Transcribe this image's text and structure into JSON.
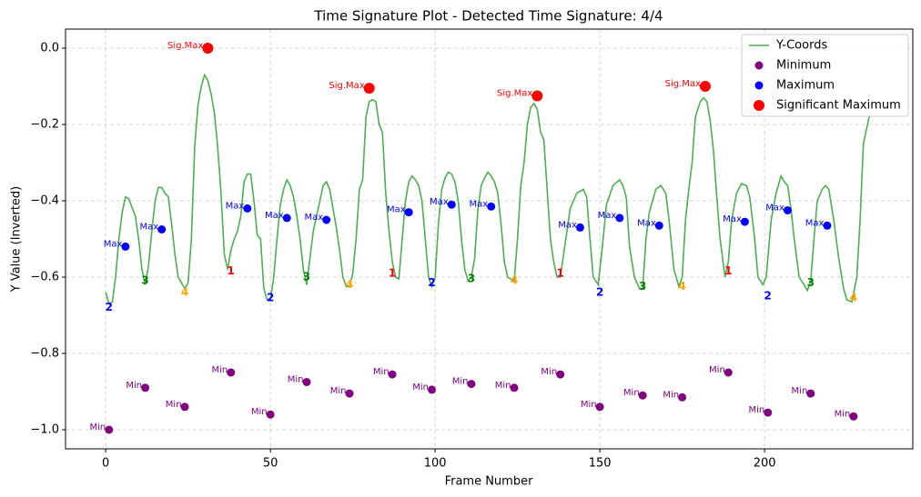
{
  "chart_data": {
    "type": "line",
    "title": "Time Signature Plot - Detected Time Signature: 4/4",
    "xlabel": "Frame Number",
    "ylabel": "Y Value (Inverted)",
    "xlim": [
      -12.2,
      245
    ],
    "ylim": [
      -1.05,
      0.05
    ],
    "xticks": [
      0,
      50,
      100,
      150,
      200
    ],
    "yticks": [
      {
        "value": 0,
        "label": "0.0"
      },
      {
        "value": -0.2,
        "label": "−0.2"
      },
      {
        "value": -0.4,
        "label": "−0.4"
      },
      {
        "value": -0.6,
        "label": "−0.6"
      },
      {
        "value": -0.8,
        "label": "−0.8"
      },
      {
        "value": -1.0,
        "label": "−1.0"
      }
    ],
    "grid": true,
    "legend": "upper right",
    "series": [
      {
        "name": "Y-Coords",
        "type": "line",
        "color": "#4caf50",
        "x": [
          0,
          1,
          2,
          3,
          4,
          5,
          6,
          7,
          9,
          10,
          11,
          12,
          13,
          14,
          15,
          16,
          17,
          18,
          19,
          20,
          21,
          22,
          24,
          25,
          26,
          27,
          28,
          29,
          30,
          31,
          32,
          33,
          34,
          35,
          36,
          37,
          38,
          39,
          40,
          41,
          42,
          43,
          44,
          45,
          46,
          47,
          48,
          49,
          50,
          51,
          52,
          53,
          54,
          55,
          56,
          57,
          58,
          59,
          60,
          61,
          62,
          63,
          64,
          65,
          66,
          67,
          68,
          69,
          70,
          71,
          72,
          73,
          74,
          75,
          76,
          77,
          78,
          79,
          80,
          81,
          82,
          83,
          84,
          85,
          86,
          87,
          88,
          89,
          90,
          91,
          92,
          93,
          94,
          95,
          96,
          97,
          98,
          99,
          100,
          101,
          102,
          103,
          104,
          105,
          106,
          107,
          108,
          109,
          110,
          111,
          112,
          113,
          114,
          115,
          116,
          117,
          118,
          119,
          120,
          121,
          122,
          124,
          125,
          126,
          127,
          128,
          129,
          130,
          131,
          132,
          133,
          134,
          135,
          136,
          137,
          138,
          141,
          143,
          145,
          146,
          147,
          148,
          149.5,
          151,
          152,
          154,
          156,
          157,
          158,
          159,
          160.5,
          162,
          163,
          164,
          165,
          167,
          168.5,
          170,
          171,
          172.5,
          174,
          175,
          176,
          177,
          178,
          179,
          180.5,
          181.5,
          182.5,
          183.5,
          184.5,
          185.5,
          186.5,
          188,
          189,
          190,
          191.5,
          193,
          194.5,
          195.5,
          197,
          198,
          199.5,
          200.5,
          202,
          203.5,
          205,
          206,
          207,
          208,
          209,
          210.5,
          212,
          213,
          214,
          215,
          216,
          217.5,
          218.5,
          219.5,
          221,
          222.5,
          224,
          225,
          226.5,
          228,
          229,
          230,
          232
        ],
        "values": [
          -0.64,
          -0.67,
          -0.665,
          -0.6,
          -0.5,
          -0.43,
          -0.39,
          -0.395,
          -0.44,
          -0.5,
          -0.58,
          -0.62,
          -0.57,
          -0.48,
          -0.4,
          -0.365,
          -0.365,
          -0.38,
          -0.39,
          -0.46,
          -0.54,
          -0.6,
          -0.63,
          -0.615,
          -0.5,
          -0.26,
          -0.15,
          -0.1,
          -0.07,
          -0.085,
          -0.12,
          -0.17,
          -0.26,
          -0.38,
          -0.54,
          -0.58,
          -0.53,
          -0.5,
          -0.48,
          -0.44,
          -0.35,
          -0.33,
          -0.33,
          -0.4,
          -0.49,
          -0.5,
          -0.63,
          -0.66,
          -0.66,
          -0.6,
          -0.5,
          -0.41,
          -0.37,
          -0.345,
          -0.36,
          -0.39,
          -0.44,
          -0.5,
          -0.58,
          -0.62,
          -0.55,
          -0.48,
          -0.44,
          -0.4,
          -0.36,
          -0.35,
          -0.37,
          -0.42,
          -0.47,
          -0.53,
          -0.6,
          -0.625,
          -0.625,
          -0.59,
          -0.5,
          -0.37,
          -0.345,
          -0.18,
          -0.14,
          -0.135,
          -0.14,
          -0.2,
          -0.22,
          -0.38,
          -0.48,
          -0.56,
          -0.6,
          -0.605,
          -0.5,
          -0.4,
          -0.35,
          -0.335,
          -0.345,
          -0.36,
          -0.4,
          -0.5,
          -0.6,
          -0.625,
          -0.6,
          -0.46,
          -0.37,
          -0.34,
          -0.325,
          -0.33,
          -0.35,
          -0.4,
          -0.5,
          -0.58,
          -0.61,
          -0.6,
          -0.55,
          -0.42,
          -0.36,
          -0.34,
          -0.325,
          -0.335,
          -0.35,
          -0.38,
          -0.46,
          -0.56,
          -0.6,
          -0.61,
          -0.5,
          -0.36,
          -0.3,
          -0.2,
          -0.155,
          -0.145,
          -0.16,
          -0.22,
          -0.24,
          -0.37,
          -0.5,
          -0.56,
          -0.6,
          -0.6,
          -0.42,
          -0.38,
          -0.37,
          -0.39,
          -0.5,
          -0.6,
          -0.62,
          -0.5,
          -0.41,
          -0.36,
          -0.345,
          -0.36,
          -0.39,
          -0.52,
          -0.6,
          -0.63,
          -0.63,
          -0.5,
          -0.43,
          -0.37,
          -0.36,
          -0.38,
          -0.45,
          -0.58,
          -0.625,
          -0.6,
          -0.45,
          -0.37,
          -0.3,
          -0.18,
          -0.14,
          -0.13,
          -0.14,
          -0.19,
          -0.27,
          -0.39,
          -0.5,
          -0.6,
          -0.56,
          -0.45,
          -0.38,
          -0.355,
          -0.36,
          -0.39,
          -0.5,
          -0.6,
          -0.62,
          -0.6,
          -0.45,
          -0.38,
          -0.335,
          -0.35,
          -0.36,
          -0.42,
          -0.5,
          -0.6,
          -0.62,
          -0.635,
          -0.61,
          -0.5,
          -0.4,
          -0.37,
          -0.36,
          -0.37,
          -0.45,
          -0.55,
          -0.63,
          -0.66,
          -0.665,
          -0.6,
          -0.45,
          -0.25,
          -0.17
        ]
      },
      {
        "name": "Minimum",
        "type": "scatter",
        "color": "#800080",
        "point_label": "Min",
        "x": [
          1,
          12,
          24,
          38,
          50,
          61,
          74,
          87,
          99,
          111,
          124,
          138,
          150,
          163,
          175,
          189,
          201,
          214,
          227
        ],
        "values": [
          -1.0,
          -0.89,
          -0.94,
          -0.85,
          -0.96,
          -0.875,
          -0.905,
          -0.855,
          -0.895,
          -0.88,
          -0.89,
          -0.855,
          -0.94,
          -0.91,
          -0.915,
          -0.85,
          -0.955,
          -0.905,
          -0.965
        ]
      },
      {
        "name": "Maximum",
        "type": "scatter",
        "color": "#0000ff",
        "point_label": "Max",
        "x": [
          6,
          17,
          43,
          55,
          67,
          92,
          105,
          117,
          144,
          156,
          168,
          194,
          207,
          219
        ],
        "values": [
          -0.52,
          -0.475,
          -0.42,
          -0.445,
          -0.45,
          -0.43,
          -0.41,
          -0.415,
          -0.47,
          -0.445,
          -0.465,
          -0.455,
          -0.425,
          -0.465
        ]
      },
      {
        "name": "Significant Maximum",
        "type": "scatter",
        "color": "#ff0000",
        "point_label": "Sig.Max",
        "size": 6,
        "x": [
          31,
          80,
          131,
          182
        ],
        "values": [
          0.0,
          -0.105,
          -0.125,
          -0.1
        ]
      }
    ],
    "beats": {
      "x": [
        1,
        12,
        24,
        38,
        50,
        61,
        74,
        87,
        99,
        111,
        124,
        138,
        150,
        163,
        175,
        189,
        201,
        214,
        227
      ],
      "y": [
        -0.68,
        -0.61,
        -0.64,
        -0.585,
        -0.655,
        -0.6,
        -0.62,
        -0.59,
        -0.615,
        -0.605,
        -0.61,
        -0.59,
        -0.64,
        -0.625,
        -0.625,
        -0.585,
        -0.65,
        -0.615,
        -0.655
      ],
      "labels": [
        "2",
        "3",
        "4",
        "1",
        "2",
        "3",
        "4",
        "1",
        "2",
        "3",
        "4",
        "1",
        "2",
        "3",
        "4",
        "1",
        "2",
        "3",
        "4"
      ],
      "colors": [
        "#0000ff",
        "#008000",
        "#ffa500",
        "#ff0000",
        "#0000ff",
        "#008000",
        "#ffa500",
        "#ff0000",
        "#0000ff",
        "#008000",
        "#ffa500",
        "#ff0000",
        "#0000ff",
        "#008000",
        "#ffa500",
        "#ff0000",
        "#0000ff",
        "#008000",
        "#ffa500"
      ]
    }
  }
}
